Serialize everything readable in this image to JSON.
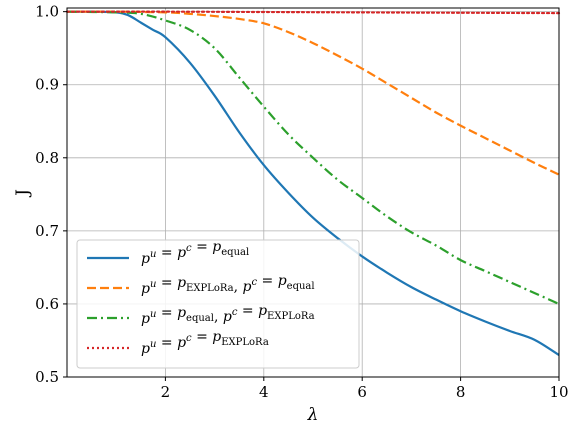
{
  "chart_data": {
    "type": "line",
    "xlabel": "λ",
    "ylabel": "J",
    "xlim": [
      0,
      10
    ],
    "ylim": [
      0.5,
      1.005
    ],
    "x_ticks": [
      2,
      4,
      6,
      8,
      10
    ],
    "y_ticks": [
      0.5,
      0.6,
      0.7,
      0.8,
      0.9,
      1.0
    ],
    "x_tick_labels": [
      "2",
      "4",
      "6",
      "8",
      "10"
    ],
    "y_tick_labels": [
      "0.5",
      "0.6",
      "0.7",
      "0.8",
      "0.9",
      "1.0"
    ],
    "grid": true,
    "legend_position": "lower-left",
    "series": [
      {
        "name": "p^u = p^c = p_equal",
        "color": "#1f77b4",
        "style": "solid",
        "x": [
          0,
          0.5,
          1,
          1.25,
          1.5,
          1.75,
          2,
          2.5,
          3,
          3.5,
          4,
          4.5,
          5,
          5.5,
          6,
          6.5,
          7,
          7.5,
          8,
          8.5,
          9,
          9.5,
          10
        ],
        "y": [
          1.0,
          1.0,
          0.999,
          0.995,
          0.985,
          0.975,
          0.965,
          0.93,
          0.885,
          0.835,
          0.79,
          0.752,
          0.718,
          0.69,
          0.665,
          0.643,
          0.623,
          0.606,
          0.59,
          0.576,
          0.563,
          0.551,
          0.53
        ]
      },
      {
        "name": "p^u = p_EXPLoRa, p^c = p_equal",
        "color": "#ff7f0e",
        "style": "dashed",
        "x": [
          0,
          1,
          2,
          2.5,
          3,
          3.5,
          4,
          4.5,
          5,
          5.5,
          6,
          6.5,
          7,
          7.5,
          8,
          8.5,
          9,
          9.5,
          10
        ],
        "y": [
          1.0,
          1.0,
          0.999,
          0.997,
          0.994,
          0.99,
          0.984,
          0.972,
          0.957,
          0.94,
          0.922,
          0.902,
          0.882,
          0.862,
          0.844,
          0.827,
          0.81,
          0.793,
          0.777
        ]
      },
      {
        "name": "p^u = p_equal, p^c = p_EXPLoRa",
        "color": "#2ca02c",
        "style": "dashdot",
        "x": [
          0,
          1,
          1.5,
          2,
          2.5,
          3,
          3.5,
          4,
          4.5,
          5,
          5.5,
          6,
          6.5,
          7,
          7.5,
          8,
          8.5,
          9,
          9.5,
          10
        ],
        "y": [
          1.0,
          0.999,
          0.997,
          0.988,
          0.975,
          0.95,
          0.91,
          0.87,
          0.832,
          0.8,
          0.77,
          0.745,
          0.72,
          0.698,
          0.68,
          0.66,
          0.645,
          0.63,
          0.615,
          0.6
        ]
      },
      {
        "name": "p^u = p^c = p_EXPLoRa",
        "color": "#d62728",
        "style": "dotted",
        "x": [
          0,
          2,
          4,
          6,
          8,
          10
        ],
        "y": [
          1.0,
          1.0,
          0.9995,
          0.999,
          0.9985,
          0.998
        ]
      }
    ]
  },
  "legend": {
    "items": [
      {
        "p1": "p",
        "s1": "u",
        "eq1": " = ",
        "p2": "p",
        "s2": "c",
        "eq2": " = ",
        "p3": "p",
        "sub3": "equal"
      },
      {
        "p1": "p",
        "s1": "u",
        "eq1": " = ",
        "p2": "p",
        "sub2": "EXPLoRa",
        "sep": ", ",
        "p3": "p",
        "s3": "c",
        "eq3": " = ",
        "p4": "p",
        "sub4": "equal"
      },
      {
        "p1": "p",
        "s1": "u",
        "eq1": " = ",
        "p2": "p",
        "sub2": "equal",
        "sep": ", ",
        "p3": "p",
        "s3": "c",
        "eq3": " = ",
        "p4": "p",
        "sub4": "EXPLoRa"
      },
      {
        "p1": "p",
        "s1": "u",
        "eq1": " = ",
        "p2": "p",
        "s2": "c",
        "eq2": " = ",
        "p3": "p",
        "sub3": "EXPLoRa"
      }
    ]
  }
}
